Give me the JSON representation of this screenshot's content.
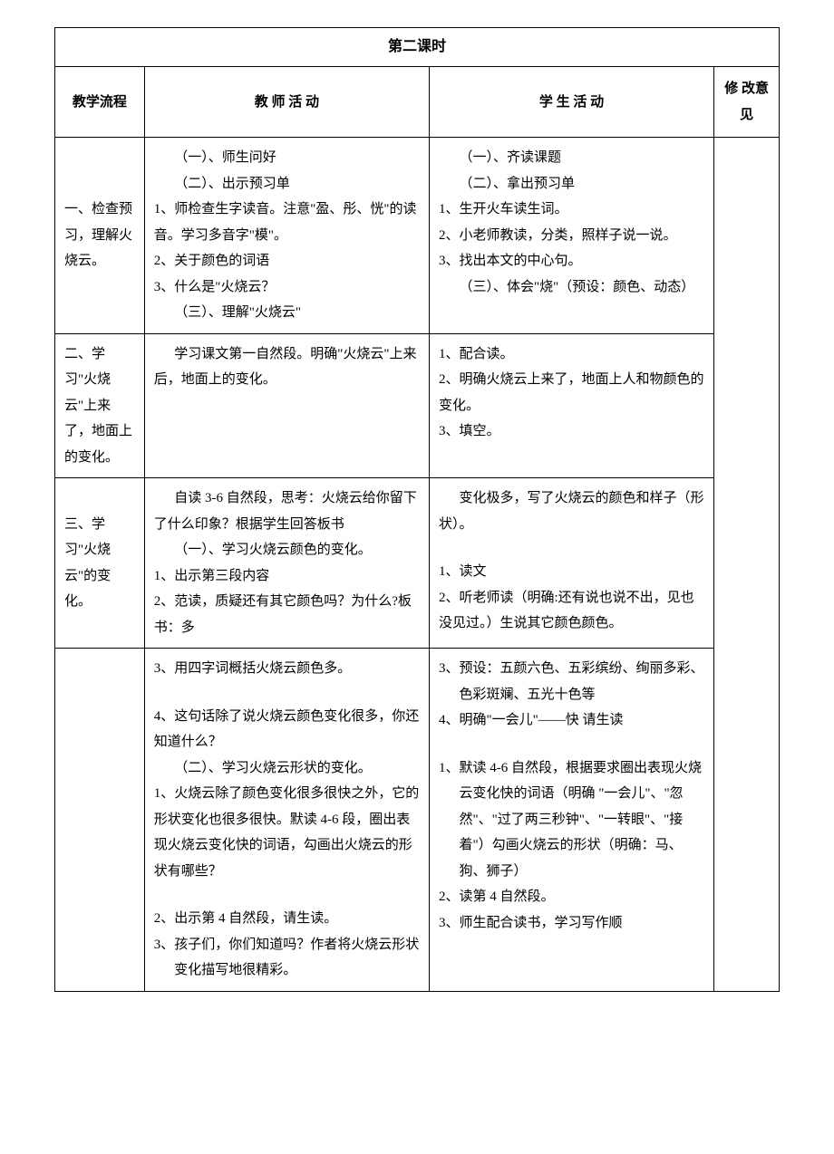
{
  "title": "第二课时",
  "headers": {
    "flow": "教学流程",
    "teacher": "教 师 活 动",
    "student": "学 生 活 动",
    "modify": "修 改意 见"
  },
  "rows": {
    "r1": {
      "flow": "一、检查预习，理解火烧云。",
      "teacher": {
        "l1": "（一）、师生问好",
        "l2": "（二）、出示预习单",
        "l3": "1、师检查生字读音。注意\"盈、彤、恍\"的读音。学习多音字\"模\"。",
        "l4": "2、关于颜色的词语",
        "l5": "3、什么是\"火烧云？",
        "l6": "（三）、理解\"火烧云\""
      },
      "student": {
        "l1": "（一）、齐读课题",
        "l2": "（二）、拿出预习单",
        "l3": "1、生开火车读生词。",
        "l4": "2、小老师教读，分类，照样子说一说。",
        "l5": "3、找出本文的中心句。",
        "l6": "（三）、体会\"烧\"（预设：颜色、动态）"
      }
    },
    "r2": {
      "flow": "二、学习\"火烧云\"上来了，地面上的变化。",
      "teacher": {
        "l1": "学习课文第一自然段。明确\"火烧云\"上来后，地面上的变化。"
      },
      "student": {
        "l1": "1、配合读。",
        "l2": "2、明确火烧云上来了，地面上人和物颜色的变化。",
        "l3": "3、填空。"
      }
    },
    "r3": {
      "flow": "三、学习\"火烧云\"的变化。",
      "teacher": {
        "l1": "自读 3-6 自然段，思考：火烧云给你留下了什么印象？根据学生回答板书",
        "l2": "（一）、学习火烧云颜色的变化。",
        "l3": "1、出示第三段内容",
        "l4": "2、范读，质疑还有其它颜色吗？为什么?板书：多"
      },
      "student": {
        "l1": "变化极多，写了火烧云的颜色和样子（形状）。",
        "l2": "1、读文",
        "l3": "2、听老师读（明确:还有说也说不出，见也没见过。）生说其它颜色颜色。"
      }
    },
    "r4": {
      "teacher": {
        "l1": "3、用四字词概括火烧云颜色多。",
        "l2": "4、这句话除了说火烧云颜色变化很多，你还知道什么？",
        "l3": "（二）、学习火烧云形状的变化。",
        "l4": "1、火烧云除了颜色变化很多很快之外，它的形状变化也很多很快。默读 4-6 段，圈出表现火烧云变化快的词语，勾画出火烧云的形状有哪些？",
        "l5": "2、出示第 4 自然段，请生读。",
        "l6": "3、孩子们，你们知道吗？作者将火烧云形状变化描写地很精彩。"
      },
      "student": {
        "l1": "3、预设：五颜六色、五彩缤纷、绚丽多彩、色彩斑斓、五光十色等",
        "l2": "4、明确\"一会儿\"——快 请生读",
        "l3": "1、默读 4-6 自然段，根据要求圈出表现火烧云变化快的词语（明确 \"一会儿\"、\"忽然\"、\"过了两三秒钟\"、\"一转眼\"、\"接着\"）勾画火烧云的形状（明确：马、狗、狮子）",
        "l4": "2、读第 4 自然段。",
        "l5": "3、师生配合读书，学习写作顺"
      }
    }
  }
}
